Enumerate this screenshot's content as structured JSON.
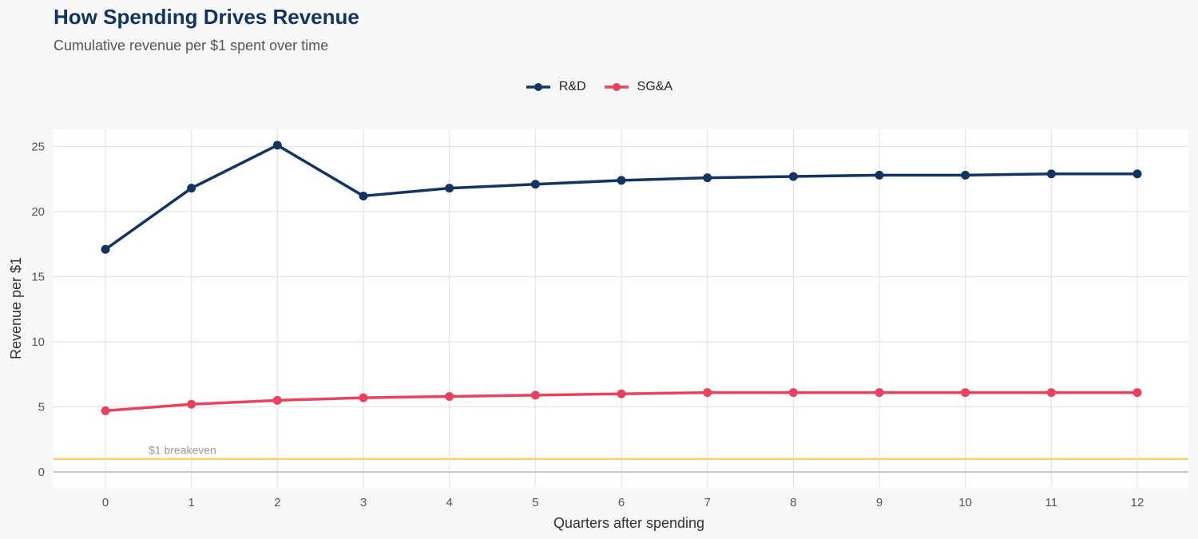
{
  "chart_data": {
    "type": "line",
    "title": "How Spending Drives Revenue",
    "subtitle": "Cumulative revenue per $1 spent over time",
    "xlabel": "Quarters after spending",
    "ylabel": "Revenue per $1",
    "x": [
      0,
      1,
      2,
      3,
      4,
      5,
      6,
      7,
      8,
      9,
      10,
      11,
      12
    ],
    "xlim": [
      -0.6,
      12.6
    ],
    "ylim": [
      -1.2,
      26.3
    ],
    "yticks": [
      0,
      5,
      10,
      15,
      20,
      25
    ],
    "grid": true,
    "legend_position": "top",
    "series": [
      {
        "name": "R&D",
        "color": "#12345f",
        "values": [
          17.1,
          21.8,
          25.1,
          21.2,
          21.8,
          22.1,
          22.4,
          22.6,
          22.7,
          22.8,
          22.8,
          22.9,
          22.9
        ]
      },
      {
        "name": "SG&A",
        "color": "#e8425e",
        "values": [
          4.7,
          5.2,
          5.5,
          5.7,
          5.8,
          5.9,
          6.0,
          6.1,
          6.1,
          6.1,
          6.1,
          6.1,
          6.1
        ]
      }
    ],
    "reference_line": {
      "y": 1,
      "label": "$1 breakeven",
      "color": "#f9d36b"
    }
  }
}
